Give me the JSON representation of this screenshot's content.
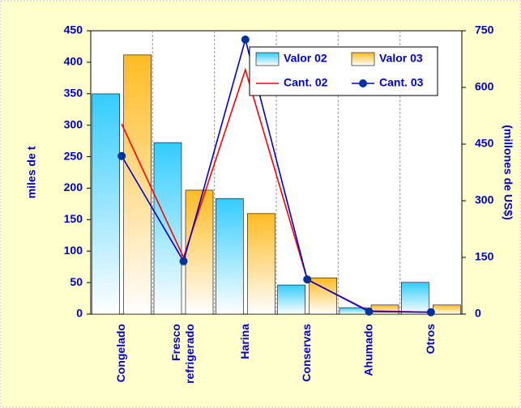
{
  "chart_data": {
    "type": "bar",
    "categories": [
      "Congelado",
      "Fresco\nrefrigerado",
      "Harina",
      "Conservas",
      "Ahumado",
      "Otros"
    ],
    "y_label": "miles de t",
    "y2_label": "(millones de US$)",
    "ylim": [
      0,
      450
    ],
    "yticks": [
      0,
      50,
      100,
      150,
      200,
      250,
      300,
      350,
      400,
      450
    ],
    "y2lim": [
      0,
      750
    ],
    "y2ticks": [
      0,
      150,
      300,
      450,
      600,
      750
    ],
    "legend": "upper right",
    "series": [
      {
        "name": "Valor 02",
        "type": "bar",
        "axis": "y2",
        "color": "#33ccff",
        "values": [
          583,
          454,
          306,
          77,
          17,
          84
        ]
      },
      {
        "name": "Valor 03",
        "type": "bar",
        "axis": "y2",
        "color": "#ffbb22",
        "values": [
          686,
          328,
          266,
          96,
          24,
          24
        ]
      },
      {
        "name": "Cant. 02",
        "type": "line",
        "color": "#ff0000",
        "values": [
          302,
          90,
          388,
          55,
          5,
          3
        ]
      },
      {
        "name": "Cant. 03",
        "type": "line",
        "color": "#0000cc",
        "marker": true,
        "values": [
          251,
          84,
          436,
          55,
          4,
          3
        ]
      }
    ]
  }
}
